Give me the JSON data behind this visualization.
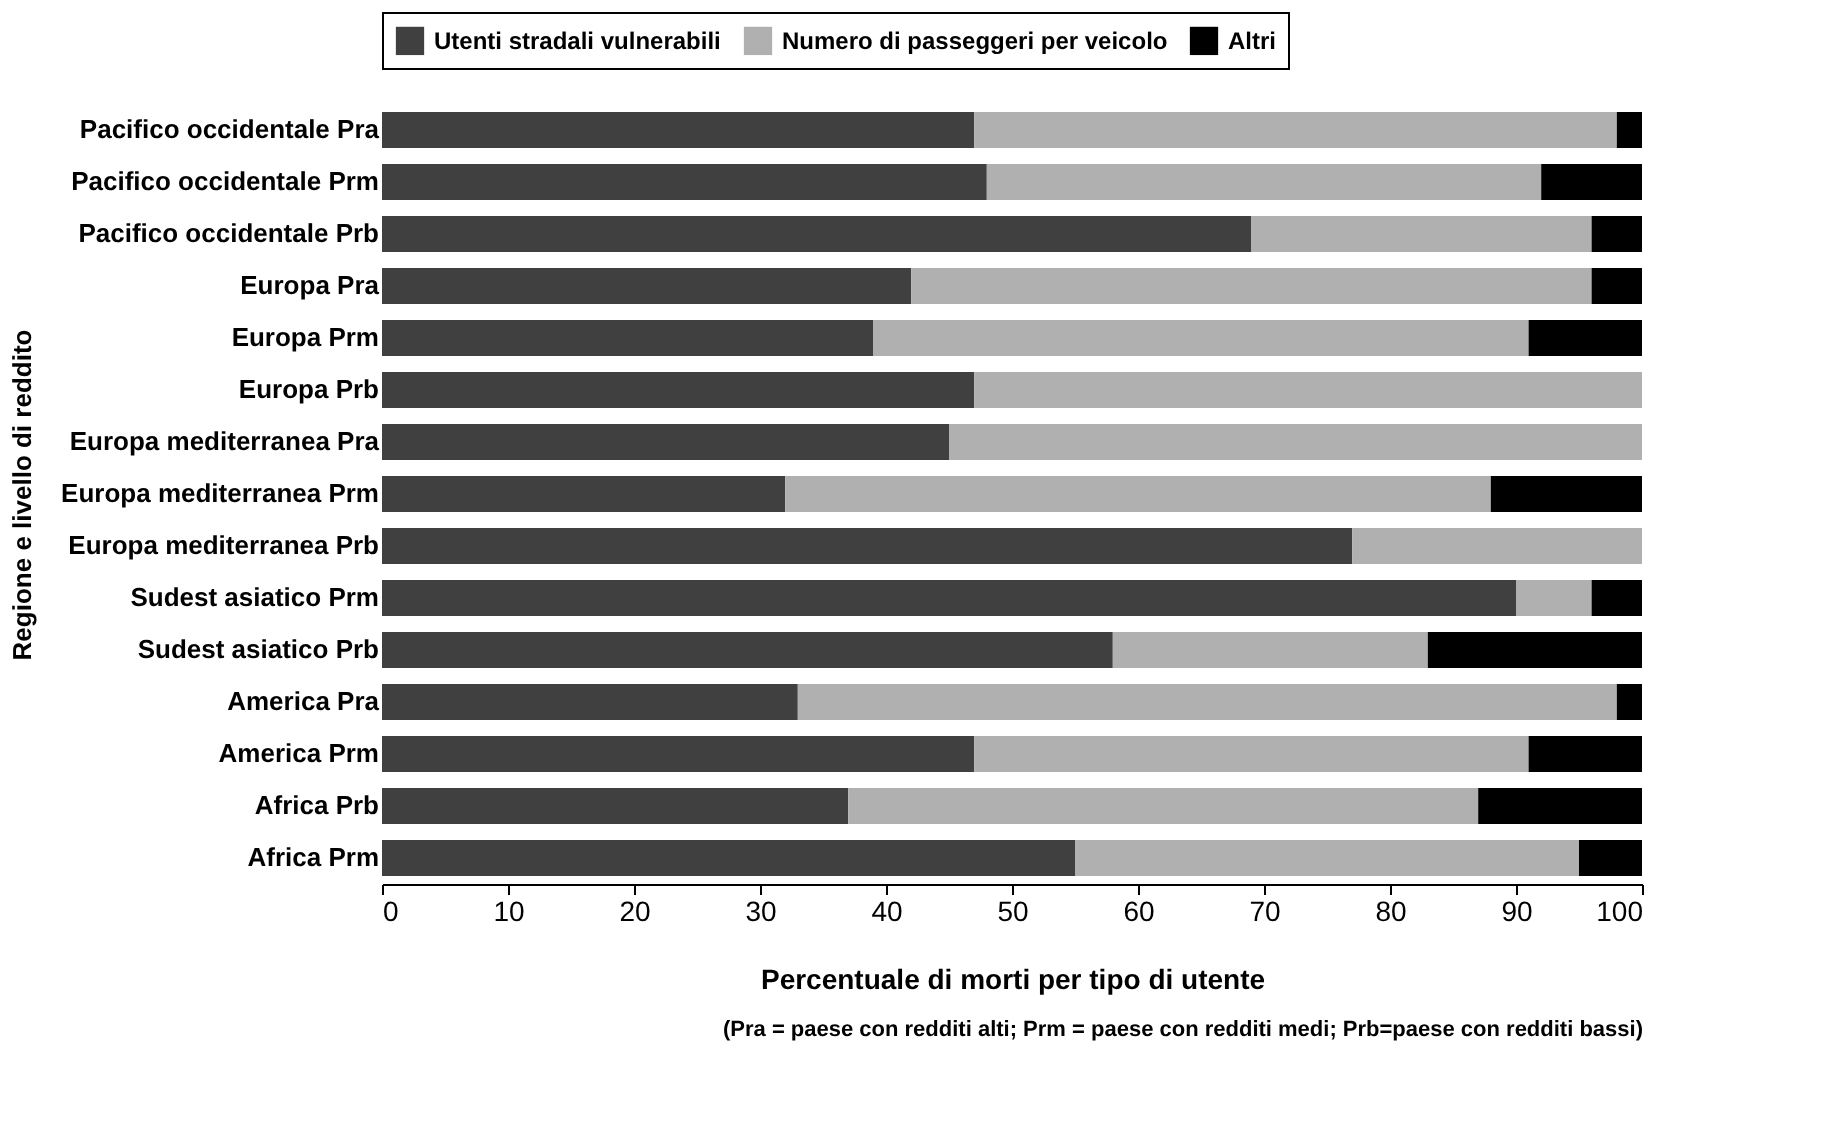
{
  "chart_data": {
    "type": "bar",
    "orientation": "horizontal",
    "stacked": true,
    "categories": [
      "Pacifico occidentale Pra",
      "Pacifico occidentale Prm",
      "Pacifico occidentale Prb",
      "Europa Pra",
      "Europa Prm",
      "Europa Prb",
      "Europa mediterranea Pra",
      "Europa mediterranea Prm",
      "Europa mediterranea Prb",
      "Sudest asiatico Prm",
      "Sudest asiatico Prb",
      "America Pra",
      "America Prm",
      "Africa Prb",
      "Africa Prm"
    ],
    "series": [
      {
        "name": "Utenti stradali vulnerabili",
        "color": "#404040",
        "values": [
          47,
          48,
          69,
          42,
          39,
          47,
          45,
          32,
          77,
          90,
          58,
          33,
          47,
          37,
          55
        ]
      },
      {
        "name": "Numero di passeggeri per veicolo",
        "color": "#b0b0b0",
        "values": [
          51,
          44,
          27,
          54,
          52,
          53,
          55,
          56,
          23,
          6,
          25,
          65,
          44,
          50,
          40
        ]
      },
      {
        "name": "Altri",
        "color": "#000000",
        "values": [
          2,
          8,
          4,
          4,
          9,
          0,
          0,
          12,
          0,
          4,
          17,
          2,
          9,
          13,
          5
        ]
      }
    ],
    "xlim": [
      0,
      100
    ],
    "xticks": [
      0,
      10,
      20,
      30,
      40,
      50,
      60,
      70,
      80,
      90,
      100
    ],
    "xlabel": "Percentuale di morti per tipo di utente",
    "ylabel": "Regione e livello di reddito",
    "legend": "top",
    "grid": false,
    "annotations": [
      "(Pra = paese con redditi alti; Prm = paese con redditi medi; Prb=paese con redditi bassi)"
    ]
  }
}
